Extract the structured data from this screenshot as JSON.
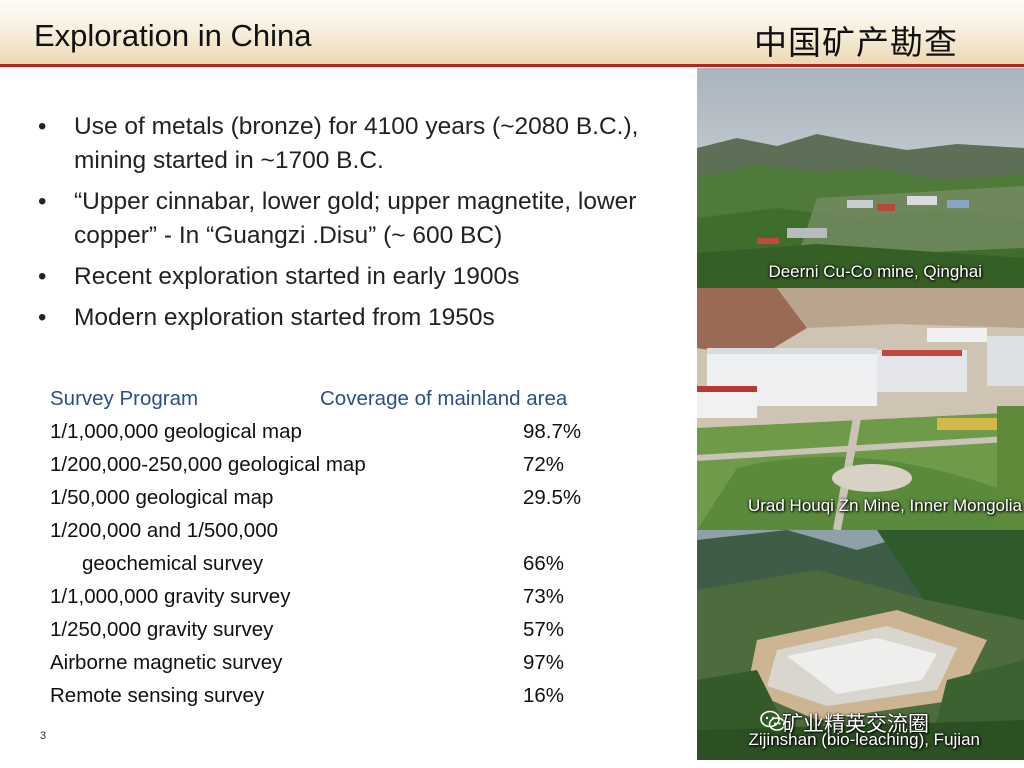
{
  "header": {
    "title": "Exploration  in China",
    "title_cn": "中国矿产勘查"
  },
  "bullets": [
    "Use of metals (bronze) for 4100 years (~2080 B.C.), mining started in ~1700 B.C.",
    " “Upper cinnabar, lower gold; upper magnetite, lower copper” - In “Guangzi .Disu” (~ 600 BC)",
    "Recent exploration started in early 1900s",
    "Modern exploration started from 1950s"
  ],
  "table": {
    "headers": [
      "Survey Program",
      "Coverage of mainland area"
    ],
    "rows": [
      {
        "program": "1/1,000,000 geological map",
        "coverage": "98.7%"
      },
      {
        "program": "1/200,000-250,000 geological map",
        "coverage": "72%"
      },
      {
        "program": "1/50,000 geological map",
        "coverage": "29.5%"
      },
      {
        "program": "1/200,000 and 1/500,000",
        "coverage": ""
      },
      {
        "program": "geochemical survey",
        "coverage": "66%"
      },
      {
        "program": "1/1,000,000 gravity survey",
        "coverage": "73%"
      },
      {
        "program": "1/250,000 gravity survey",
        "coverage": "57%"
      },
      {
        "program": "Airborne magnetic survey",
        "coverage": "97%"
      },
      {
        "program": "Remote sensing survey",
        "coverage": "16%"
      }
    ]
  },
  "photos": [
    {
      "caption": "Deerni Cu-Co mine, Qinghai"
    },
    {
      "caption": "Urad Houqi  Zn Mine, Inner Mongolia"
    },
    {
      "caption": "Zijinshan  (bio-leaching),  Fujian"
    }
  ],
  "watermark": "矿业精英交流圈",
  "page_number": "3",
  "colors": {
    "accent_rule": "#b3261e",
    "table_header": "#2b4f86"
  }
}
